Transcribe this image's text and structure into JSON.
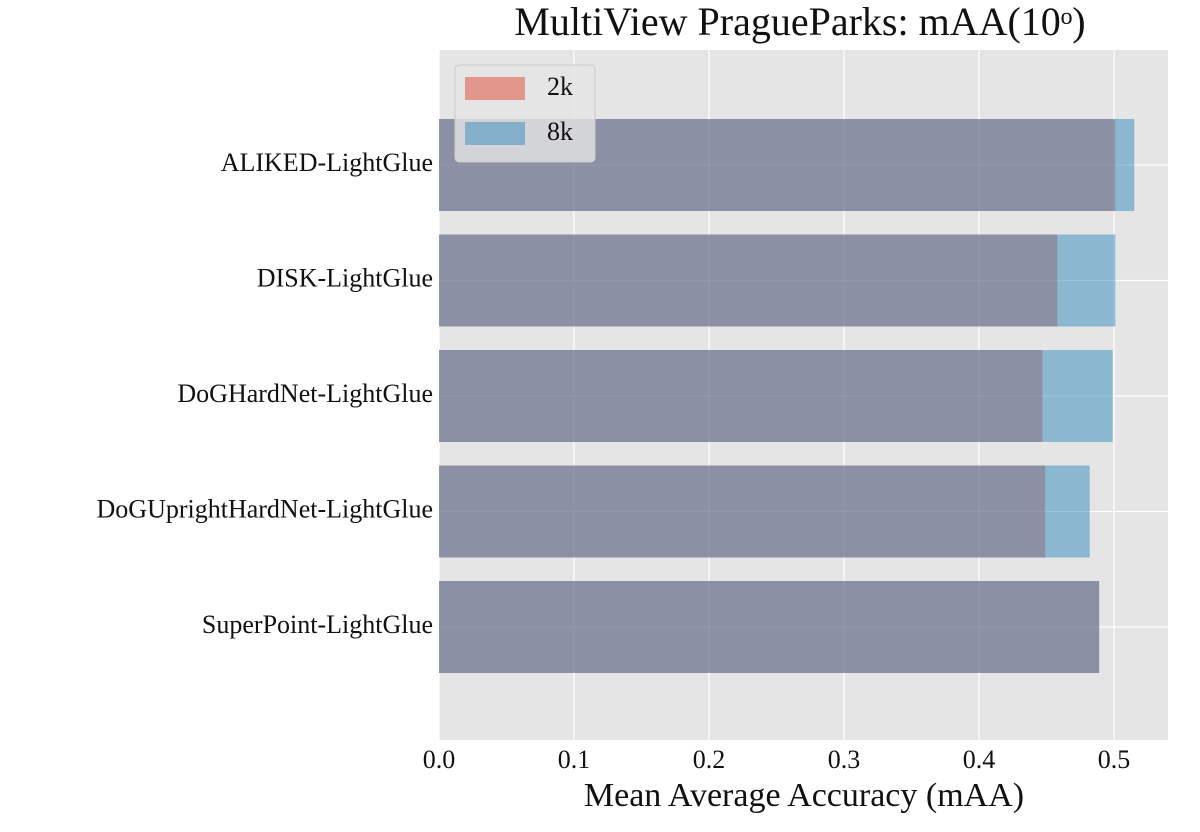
{
  "chart_data": {
    "type": "barh",
    "title": "MultiView PragueParks: mAA(10ᵒ)",
    "x_label": "Mean Average Accuracy (mAA)",
    "categories": [
      "ALIKED-LightGlue",
      "DISK-LightGlue",
      "DoGHardNet-LightGlue",
      "DoGUprightHardNet-LightGlue",
      "SuperPoint-LightGlue"
    ],
    "series": [
      {
        "name": "2k",
        "color": "#E24A33",
        "values": [
          0.501,
          0.458,
          0.447,
          0.449,
          0.489
        ]
      },
      {
        "name": "8k",
        "color": "#348ABD",
        "values": [
          0.515,
          0.501,
          0.499,
          0.482,
          0.489
        ]
      }
    ],
    "xlim": [
      0,
      0.54
    ],
    "xticks": [
      {
        "value": 0,
        "label": "0.0"
      },
      0.1,
      0.2,
      0.3,
      0.4,
      0.5
    ],
    "grid": true,
    "legend": "upper left"
  }
}
